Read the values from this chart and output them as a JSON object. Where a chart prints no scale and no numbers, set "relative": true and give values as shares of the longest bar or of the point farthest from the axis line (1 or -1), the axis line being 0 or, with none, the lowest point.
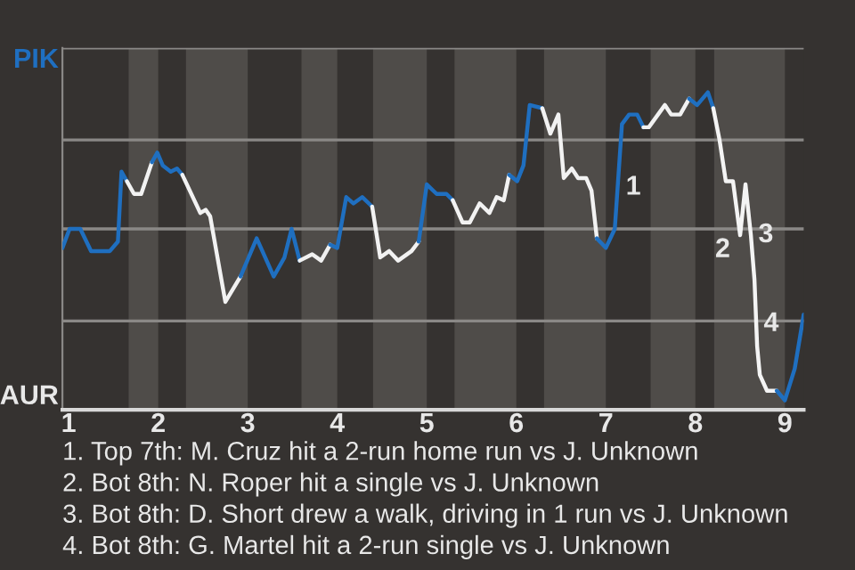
{
  "chart_data": {
    "type": "line",
    "relative": true,
    "series": [
      {
        "color": "#1f6fc0",
        "x": [
          0.93,
          1.01,
          1.13,
          1.25,
          1.46,
          1.55,
          1.59,
          1.65
        ],
        "values": [
          0.51,
          0.57,
          0.57,
          0.5,
          0.5,
          0.53,
          0.75,
          0.72
        ]
      },
      {
        "color": "#f2f2f2",
        "x": [
          1.65,
          1.73,
          1.81,
          1.93
        ],
        "values": [
          0.72,
          0.68,
          0.68,
          0.78
        ]
      },
      {
        "color": "#1f6fc0",
        "x": [
          1.93,
          1.99,
          2.05,
          2.14,
          2.21,
          2.27
        ],
        "values": [
          0.78,
          0.81,
          0.77,
          0.75,
          0.76,
          0.74
        ]
      },
      {
        "color": "#f2f2f2",
        "x": [
          2.27,
          2.47,
          2.53,
          2.58,
          2.75,
          2.92
        ],
        "values": [
          0.74,
          0.62,
          0.63,
          0.61,
          0.34,
          0.42
        ]
      },
      {
        "color": "#1f6fc0",
        "x": [
          2.92,
          3.1,
          3.29,
          3.41,
          3.49,
          3.58
        ],
        "values": [
          0.42,
          0.54,
          0.42,
          0.48,
          0.57,
          0.47
        ]
      },
      {
        "color": "#f0f0f0",
        "x": [
          3.58,
          3.72,
          3.82,
          3.92
        ],
        "values": [
          0.47,
          0.49,
          0.47,
          0.52
        ]
      },
      {
        "color": "#1f6fc0",
        "x": [
          3.92,
          4.0,
          4.1,
          4.18,
          4.28,
          4.39
        ],
        "values": [
          0.52,
          0.51,
          0.67,
          0.65,
          0.67,
          0.64
        ]
      },
      {
        "color": "#f2f2f2",
        "x": [
          4.39,
          4.48,
          4.58,
          4.68,
          4.83,
          4.91
        ],
        "values": [
          0.64,
          0.48,
          0.5,
          0.47,
          0.5,
          0.53
        ]
      },
      {
        "color": "#1f6fc0",
        "x": [
          4.91,
          5.0,
          5.11,
          5.22,
          5.29
        ],
        "values": [
          0.53,
          0.71,
          0.68,
          0.68,
          0.66
        ]
      },
      {
        "color": "#f2f2f2",
        "x": [
          5.29,
          5.4,
          5.48,
          5.59,
          5.7,
          5.78,
          5.86,
          5.92
        ],
        "values": [
          0.66,
          0.59,
          0.59,
          0.65,
          0.62,
          0.67,
          0.66,
          0.74
        ]
      },
      {
        "color": "#1f6fc0",
        "x": [
          5.92,
          6.01,
          6.08,
          6.15,
          6.29
        ],
        "values": [
          0.74,
          0.72,
          0.77,
          0.96,
          0.95
        ]
      },
      {
        "color": "#f2f2f2",
        "x": [
          6.29,
          6.38,
          6.47,
          6.53,
          6.62,
          6.69,
          6.78,
          6.84,
          6.9
        ],
        "values": [
          0.95,
          0.87,
          0.93,
          0.73,
          0.76,
          0.73,
          0.73,
          0.69,
          0.54
        ]
      },
      {
        "color": "#1f6fc0",
        "x": [
          6.9,
          7.0,
          7.1,
          7.18,
          7.26,
          7.35,
          7.42
        ],
        "values": [
          0.54,
          0.51,
          0.57,
          0.9,
          0.93,
          0.93,
          0.89
        ]
      },
      {
        "color": "#f2f2f2",
        "x": [
          7.42,
          7.48,
          7.66,
          7.73,
          7.83,
          7.93
        ],
        "values": [
          0.89,
          0.89,
          0.96,
          0.93,
          0.93,
          0.98
        ]
      },
      {
        "color": "#1f6fc0",
        "x": [
          7.93,
          8.02,
          8.14,
          8.2
        ],
        "values": [
          0.98,
          0.96,
          1,
          0.95
        ]
      },
      {
        "color": "#f4f4f4",
        "x": [
          8.2,
          8.27,
          8.34,
          8.42,
          8.5,
          8.56,
          8.62,
          8.66,
          8.69,
          8.72,
          8.8,
          8.91
        ],
        "values": [
          0.95,
          0.85,
          0.72,
          0.72,
          0.55,
          0.71,
          0.55,
          0.41,
          0.2,
          0.11,
          0.06,
          0.06
        ]
      },
      {
        "color": "#1f6fc0",
        "x": [
          8.91,
          9.0,
          9.11,
          9.21
        ],
        "values": [
          0.06,
          0.03,
          0.13,
          0.3
        ]
      }
    ],
    "xlim": [
      0.93,
      9.21
    ],
    "xticks": [
      1,
      2,
      3,
      4,
      5,
      6,
      7,
      8,
      9
    ],
    "ref_lines": [
      {
        "axis": "y",
        "value": 0.28,
        "color": "#8a8886"
      },
      {
        "axis": "y",
        "value": 0.57,
        "color": "#8a8886"
      },
      {
        "axis": "y",
        "value": 0.85,
        "color": "#8a8886"
      },
      {
        "axis": "y",
        "value": 1.14,
        "color": "#8a8886"
      }
    ],
    "bands": [
      {
        "axis": "x",
        "from": 1.67,
        "to": 2,
        "color": "#4f4c49"
      },
      {
        "axis": "x",
        "from": 2.31,
        "to": 3,
        "color": "#4f4c49"
      },
      {
        "axis": "x",
        "from": 3.6,
        "to": 4,
        "color": "#4f4c49"
      },
      {
        "axis": "x",
        "from": 4.4,
        "to": 5,
        "color": "#4f4c49"
      },
      {
        "axis": "x",
        "from": 5.31,
        "to": 6,
        "color": "#4f4c49"
      },
      {
        "axis": "x",
        "from": 6.31,
        "to": 7,
        "color": "#4f4c49"
      },
      {
        "axis": "x",
        "from": 7.5,
        "to": 8,
        "color": "#4f4c49"
      },
      {
        "axis": "x",
        "from": 8.21,
        "to": 9,
        "color": "#4f4c49"
      }
    ],
    "annotations": [
      "PIK",
      "AUR",
      {
        "text": "1",
        "x": 7.14,
        "y": 0.7
      },
      {
        "text": "2",
        "x": 8.5,
        "y": 0.55
      },
      {
        "text": "3",
        "x": 8.62,
        "y": 0.55
      },
      {
        "text": "4",
        "x": 8.68,
        "y": 0.27
      },
      "1. Top 7th: M. Cruz hit a 2-run home run vs J. Unknown",
      "2. Bot 8th: N. Roper hit a single vs J. Unknown",
      "3. Bot 8th: D. Short drew a walk, driving in 1 run vs J. Unknown",
      "4. Bot 8th: G. Martel hit a 2-run single vs J. Unknown"
    ],
    "legend": false
  }
}
